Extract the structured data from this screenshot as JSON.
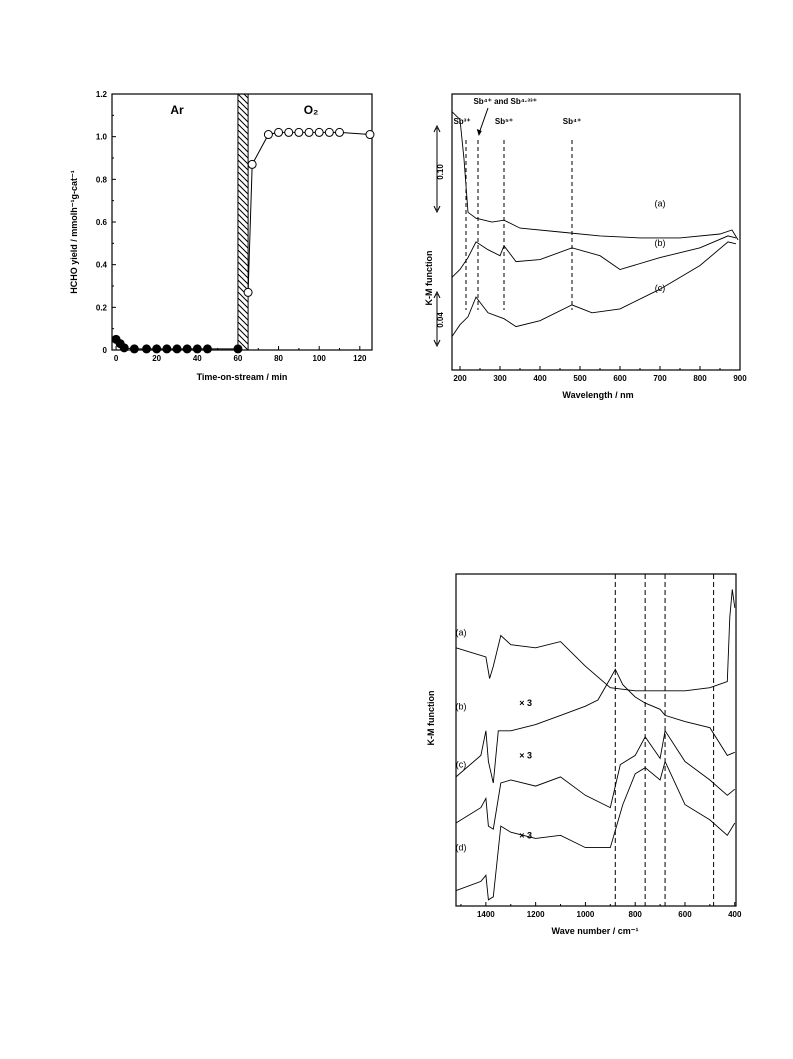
{
  "chart_data": [
    {
      "type": "scatter",
      "xlabel": "Time-on-stream / min",
      "ylabel": "HCHO yield / mmolh⁻¹g-cat⁻¹",
      "xlim": [
        -2,
        126
      ],
      "ylim": [
        0,
        1.2
      ],
      "x_ticks": [
        "0",
        "20",
        "40",
        "60",
        "80",
        "100",
        "120"
      ],
      "y_ticks": [
        "0",
        "0.2",
        "0.4",
        "0.6",
        "0.8",
        "1.0",
        "1.2"
      ],
      "regions": [
        {
          "label": "Ar",
          "x": [
            0,
            60
          ]
        },
        {
          "label": "O₂",
          "x": [
            65,
            126
          ]
        }
      ],
      "hatched_interval": [
        60,
        65
      ],
      "series": [
        {
          "marker": "filled-circle",
          "points": [
            [
              0,
              0.05
            ],
            [
              2,
              0.03
            ],
            [
              4,
              0.01
            ],
            [
              9,
              0.005
            ],
            [
              15,
              0.005
            ],
            [
              20,
              0.005
            ],
            [
              25,
              0.005
            ],
            [
              30,
              0.005
            ],
            [
              35,
              0.005
            ],
            [
              40,
              0.005
            ],
            [
              45,
              0.005
            ],
            [
              60,
              0.005
            ]
          ]
        },
        {
          "marker": "open-circle",
          "points": [
            [
              65,
              0.27
            ],
            [
              67,
              0.87
            ],
            [
              75,
              1.01
            ],
            [
              80,
              1.02
            ],
            [
              85,
              1.02
            ],
            [
              90,
              1.02
            ],
            [
              95,
              1.02
            ],
            [
              100,
              1.02
            ],
            [
              105,
              1.02
            ],
            [
              110,
              1.02
            ],
            [
              125,
              1.01
            ]
          ]
        }
      ]
    },
    {
      "type": "line",
      "xlabel": "Wavelength / nm",
      "ylabel": "K-M function",
      "xlim": [
        180,
        900
      ],
      "x_ticks": [
        "200",
        "300",
        "400",
        "500",
        "600",
        "700",
        "800",
        "900"
      ],
      "scale_bars": [
        "0.10",
        "0.04"
      ],
      "peak_labels": [
        {
          "text": "Sb³⁺",
          "x": 215
        },
        {
          "text": "Sb⁴⁺ and Sb⁴·³³⁺",
          "x": 245
        },
        {
          "text": "Sb⁵⁺",
          "x": 310
        },
        {
          "text": "Sb⁴⁺",
          "x": 480
        }
      ],
      "series": [
        {
          "name": "(a)",
          "points": [
            [
              180,
              0.96
            ],
            [
              200,
              0.92
            ],
            [
              210,
              0.72
            ],
            [
              220,
              0.45
            ],
            [
              240,
              0.42
            ],
            [
              280,
              0.4
            ],
            [
              310,
              0.41
            ],
            [
              350,
              0.37
            ],
            [
              450,
              0.35
            ],
            [
              550,
              0.33
            ],
            [
              650,
              0.32
            ],
            [
              750,
              0.32
            ],
            [
              850,
              0.34
            ],
            [
              880,
              0.36
            ],
            [
              895,
              0.31
            ]
          ]
        },
        {
          "name": "(b)",
          "points": [
            [
              180,
              0.12
            ],
            [
              200,
              0.16
            ],
            [
              220,
              0.22
            ],
            [
              240,
              0.3
            ],
            [
              270,
              0.26
            ],
            [
              300,
              0.23
            ],
            [
              310,
              0.28
            ],
            [
              340,
              0.2
            ],
            [
              400,
              0.21
            ],
            [
              480,
              0.27
            ],
            [
              550,
              0.23
            ],
            [
              600,
              0.16
            ],
            [
              700,
              0.22
            ],
            [
              800,
              0.27
            ],
            [
              870,
              0.33
            ],
            [
              890,
              0.32
            ]
          ]
        },
        {
          "name": "(c)",
          "points": [
            [
              180,
              -0.18
            ],
            [
              200,
              -0.12
            ],
            [
              220,
              -0.08
            ],
            [
              240,
              0.02
            ],
            [
              270,
              -0.06
            ],
            [
              310,
              -0.09
            ],
            [
              340,
              -0.13
            ],
            [
              400,
              -0.1
            ],
            [
              480,
              -0.02
            ],
            [
              530,
              -0.06
            ],
            [
              600,
              -0.04
            ],
            [
              700,
              0.06
            ],
            [
              800,
              0.18
            ],
            [
              870,
              0.3
            ],
            [
              890,
              0.29
            ]
          ]
        }
      ]
    },
    {
      "type": "line",
      "xlabel": "Wave number / cm⁻¹",
      "ylabel": "K-M function",
      "xlim": [
        1520,
        395
      ],
      "x_ticks": [
        "1400",
        "1200",
        "1000",
        "800",
        "600",
        "400"
      ],
      "dashed_lines": [
        880,
        760,
        680,
        485
      ],
      "annotations": [
        "× 3",
        "× 3",
        "× 3"
      ],
      "series": [
        {
          "name": "(a)",
          "points": [
            [
              1520,
              0.82
            ],
            [
              1400,
              0.79
            ],
            [
              1385,
              0.72
            ],
            [
              1370,
              0.76
            ],
            [
              1340,
              0.86
            ],
            [
              1300,
              0.83
            ],
            [
              1200,
              0.82
            ],
            [
              1100,
              0.84
            ],
            [
              1000,
              0.76
            ],
            [
              900,
              0.69
            ],
            [
              800,
              0.68
            ],
            [
              700,
              0.68
            ],
            [
              600,
              0.68
            ],
            [
              500,
              0.69
            ],
            [
              430,
              0.71
            ],
            [
              420,
              0.92
            ],
            [
              410,
              1.01
            ],
            [
              400,
              0.95
            ]
          ]
        },
        {
          "name": "(b)",
          "points": [
            [
              1520,
              0.4
            ],
            [
              1420,
              0.47
            ],
            [
              1400,
              0.55
            ],
            [
              1390,
              0.45
            ],
            [
              1370,
              0.38
            ],
            [
              1350,
              0.55
            ],
            [
              1300,
              0.55
            ],
            [
              1200,
              0.57
            ],
            [
              1100,
              0.6
            ],
            [
              1000,
              0.63
            ],
            [
              950,
              0.65
            ],
            [
              900,
              0.72
            ],
            [
              880,
              0.75
            ],
            [
              850,
              0.7
            ],
            [
              800,
              0.66
            ],
            [
              760,
              0.64
            ],
            [
              700,
              0.62
            ],
            [
              680,
              0.6
            ],
            [
              600,
              0.58
            ],
            [
              500,
              0.56
            ],
            [
              430,
              0.47
            ],
            [
              400,
              0.48
            ]
          ]
        },
        {
          "name": "(c)",
          "points": [
            [
              1520,
              0.25
            ],
            [
              1420,
              0.3
            ],
            [
              1400,
              0.33
            ],
            [
              1390,
              0.24
            ],
            [
              1370,
              0.23
            ],
            [
              1340,
              0.38
            ],
            [
              1300,
              0.39
            ],
            [
              1200,
              0.37
            ],
            [
              1100,
              0.4
            ],
            [
              1000,
              0.34
            ],
            [
              900,
              0.3
            ],
            [
              860,
              0.44
            ],
            [
              800,
              0.47
            ],
            [
              760,
              0.53
            ],
            [
              700,
              0.46
            ],
            [
              680,
              0.55
            ],
            [
              600,
              0.45
            ],
            [
              500,
              0.39
            ],
            [
              430,
              0.34
            ],
            [
              400,
              0.36
            ]
          ]
        },
        {
          "name": "(d)",
          "points": [
            [
              1520,
              0.03
            ],
            [
              1420,
              0.06
            ],
            [
              1400,
              0.08
            ],
            [
              1390,
              0.0
            ],
            [
              1370,
              0.01
            ],
            [
              1340,
              0.24
            ],
            [
              1300,
              0.22
            ],
            [
              1200,
              0.2
            ],
            [
              1100,
              0.21
            ],
            [
              1000,
              0.17
            ],
            [
              900,
              0.17
            ],
            [
              850,
              0.31
            ],
            [
              800,
              0.41
            ],
            [
              760,
              0.43
            ],
            [
              700,
              0.39
            ],
            [
              680,
              0.45
            ],
            [
              600,
              0.31
            ],
            [
              500,
              0.26
            ],
            [
              430,
              0.21
            ],
            [
              400,
              0.25
            ]
          ]
        }
      ]
    }
  ]
}
